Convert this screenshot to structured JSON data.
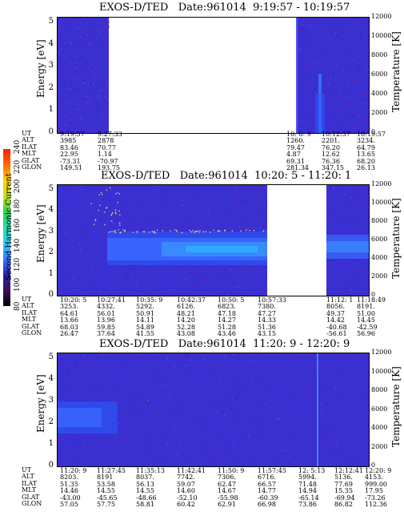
{
  "colorbar": {
    "label": "Second Harmonic Current",
    "ticks": [
      "80",
      "100",
      "120",
      "140",
      "160",
      "180",
      "200",
      "220",
      "240"
    ],
    "colors": [
      "#000000",
      "#3b0f55",
      "#2d1fb4",
      "#3a7bff",
      "#2fd0ff",
      "#20e0b0",
      "#2fd14a",
      "#c7e21a",
      "#ffd200",
      "#ff6a00",
      "#ff1e00"
    ]
  },
  "panels": [
    {
      "title": "EXOS-D/TED   Date:961014  9:19:57 - 10:19:57",
      "ylabel": "Energy [eV]",
      "y2label": "Temperature [K]",
      "yticks": [
        "0",
        "1",
        "2",
        "3",
        "4",
        "5"
      ],
      "y2ticks": [
        "0",
        "2000",
        "4000",
        "6000",
        "8000",
        "10000",
        "12000"
      ],
      "table": {
        "row_labels": [
          "UT",
          "ALT",
          "ILAT",
          "MLT",
          "GLAT",
          "GLON"
        ],
        "columns": [
          [
            "9:19:57",
            "3985",
            "83.46",
            "22.95",
            "-73.31",
            "149.51"
          ],
          [
            "9:27:33",
            "2878",
            "70.77",
            "1.14",
            "-70.97",
            "193.75"
          ],
          [
            "10: 6: 9",
            "1260.",
            "79.47",
            "4.87",
            "69.31",
            "281.34"
          ],
          [
            "10:12:57",
            "2201.",
            "76.20",
            "12.62",
            "76.36",
            "347.15"
          ],
          [
            "10:19:57",
            "3234.",
            "64.79",
            "13.65",
            "68.20",
            "26.13"
          ]
        ]
      }
    },
    {
      "title": "EXOS-D/TED   Date:961014  10:20: 5 - 11:20: 1",
      "ylabel": "Energy [eV]",
      "y2label": "Temperature [K]",
      "yticks": [
        "0",
        "1",
        "2",
        "3",
        "4",
        "5"
      ],
      "y2ticks": [
        "0",
        "2000",
        "4000",
        "6000",
        "8000",
        "10000",
        "12000"
      ],
      "table": {
        "row_labels": [
          "UT",
          "ALT",
          "ILAT",
          "MLT",
          "GLAT",
          "GLON"
        ],
        "columns": [
          [
            "10:20: 5",
            "3253.",
            "64.61",
            "13.66",
            "68.03",
            "26.47"
          ],
          [
            "10:27:41",
            "4332.",
            "56.01",
            "13.96",
            "59.85",
            "37.64"
          ],
          [
            "10:35: 9",
            "5292.",
            "50.91",
            "14.11",
            "54.89",
            "41.55"
          ],
          [
            "10:42:37",
            "6126.",
            "48.21",
            "14.20",
            "52.28",
            "43.08"
          ],
          [
            "10:50: 5",
            "6823.",
            "47.18",
            "14.27",
            "51.28",
            "43.46"
          ],
          [
            "10:57:33",
            "7380.",
            "47.27",
            "14.33",
            "51.36",
            "43.15"
          ],
          [
            "11:12: 1",
            "8056.",
            "49.37",
            "14.42",
            "-40.68",
            "-56.61"
          ],
          [
            "11:18:49",
            "8191.",
            "51.00",
            "14.45",
            "-42.59",
            "56.96"
          ]
        ]
      }
    },
    {
      "title": "EXOS-D/TED   Date:961014  11:20: 9 - 12:20: 9",
      "ylabel": "Energy [eV]",
      "y2label": "Temperature [K]",
      "yticks": [
        "0",
        "1",
        "2",
        "3",
        "4",
        "5"
      ],
      "y2ticks": [
        "0",
        "2000",
        "4000",
        "6000",
        "8000",
        "10000",
        "12000"
      ],
      "table": {
        "row_labels": [
          "UT",
          "ALT",
          "ILAT",
          "MLT",
          "GLAT",
          "GLON"
        ],
        "columns": [
          [
            "11:20: 9",
            "8203.",
            "51.35",
            "14.46",
            "-43.00",
            "57.05"
          ],
          [
            "11:27:45",
            "8191",
            "53.58",
            "14.55",
            "-45.65",
            "57.75"
          ],
          [
            "11:35:13",
            "8037.",
            "56.13",
            "14.55",
            "-48.66",
            "58.81"
          ],
          [
            "11:42:41",
            "7742.",
            "59.07",
            "14.60",
            "-52.10",
            "60.42"
          ],
          [
            "11:50: 9",
            "7306.",
            "62.47",
            "14.67",
            "-55.98",
            "62.91"
          ],
          [
            "11:57:45",
            "6716.",
            "66.57",
            "14.77",
            "-60.39",
            "66.98"
          ],
          [
            "12: 5:13",
            "5994.",
            "71.48",
            "14.94",
            "-65.14",
            "73.86"
          ],
          [
            "12:12:41",
            "5136.",
            "77.69",
            "15.35",
            "-69.94",
            "86.82"
          ],
          [
            "12:20: 9",
            "4153.",
            "999.00",
            "17.95",
            "-73.26",
            "112.36"
          ]
        ]
      }
    }
  ],
  "chart_data": [
    {
      "type": "heatmap",
      "title": "EXOS-D/TED   Date:961014  9:19:57 - 10:19:57",
      "xlabel": "UT",
      "ylabel": "Energy [eV]",
      "y2label": "Temperature [K]",
      "ylim": [
        0,
        5
      ],
      "y2lim": [
        0,
        12000
      ],
      "colorbar_label": "Second Harmonic Current",
      "colorbar_range": [
        80,
        240
      ],
      "data_coverage": [
        [
          "9:19:57",
          "9:27:33"
        ],
        [
          "10: 6: 9",
          "10:19:57"
        ]
      ],
      "features": [
        {
          "ut": "10:12:57",
          "energy_range": [
            0,
            2.5
          ],
          "level": 140
        }
      ]
    },
    {
      "type": "heatmap",
      "title": "EXOS-D/TED   Date:961014  10:20: 5 - 11:20: 1",
      "xlabel": "UT",
      "ylabel": "Energy [eV]",
      "y2label": "Temperature [K]",
      "ylim": [
        0,
        5
      ],
      "y2lim": [
        0,
        12000
      ],
      "colorbar_label": "Second Harmonic Current",
      "colorbar_range": [
        80,
        240
      ],
      "data_coverage": [
        [
          "10:20: 5",
          "11:00:00"
        ],
        [
          "11: 8:00",
          "11:20: 1"
        ]
      ],
      "features": [
        {
          "ut_range": [
            "10:27:41",
            "11:00:00"
          ],
          "energy_range": [
            1.0,
            2.9
          ],
          "level": 140
        }
      ]
    },
    {
      "type": "heatmap",
      "title": "EXOS-D/TED   Date:961014  11:20: 9 - 12:20: 9",
      "xlabel": "UT",
      "ylabel": "Energy [eV]",
      "y2label": "Temperature [K]",
      "ylim": [
        0,
        5
      ],
      "y2lim": [
        0,
        12000
      ],
      "colorbar_label": "Second Harmonic Current",
      "colorbar_range": [
        80,
        240
      ],
      "data_coverage": [
        [
          "11:20: 9",
          "12:20: 9"
        ]
      ],
      "features": [
        {
          "ut_range": [
            "11:20: 9",
            "11:27:45"
          ],
          "energy_range": [
            1.3,
            2.8
          ],
          "level": 130
        }
      ]
    }
  ]
}
